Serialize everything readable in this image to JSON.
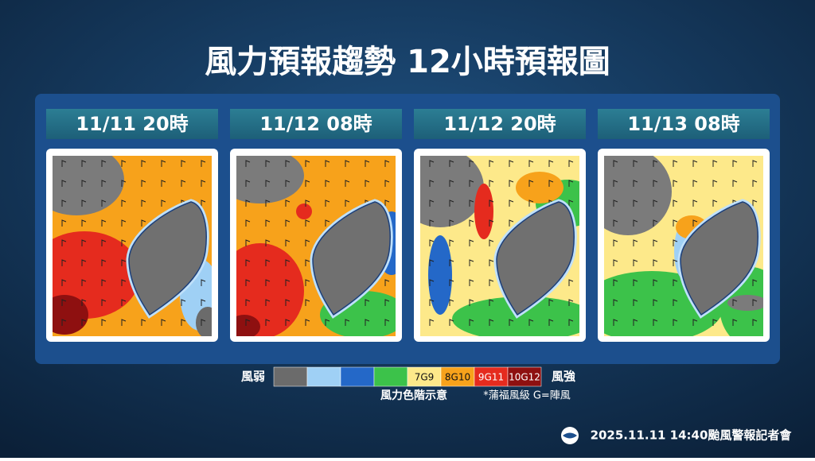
{
  "header": {
    "title": "風力預報趨勢  12小時預報圖"
  },
  "panels": [
    {
      "label": "11/11 20時"
    },
    {
      "label": "11/12 08時"
    },
    {
      "label": "11/12 20時"
    },
    {
      "label": "11/13 08時"
    }
  ],
  "legend": {
    "weak": "風弱",
    "strong": "風強",
    "caption": "風力色階示意",
    "note": "*蒲福風級 G=陣風",
    "items": [
      {
        "color": "#6b6b6b"
      },
      {
        "color": "#9fd0f5"
      },
      {
        "color": "#2468c8"
      },
      {
        "color": "#3cc24a"
      },
      {
        "color": "#fde98a",
        "label": "7G9"
      },
      {
        "color": "#f7a21b",
        "label": "8G10"
      },
      {
        "color": "#e52b1e",
        "label": "9G11"
      },
      {
        "color": "#8e1010",
        "label": "10G12"
      }
    ]
  },
  "footer": {
    "text": "2025.11.11  14:40颱風警報記者會"
  }
}
